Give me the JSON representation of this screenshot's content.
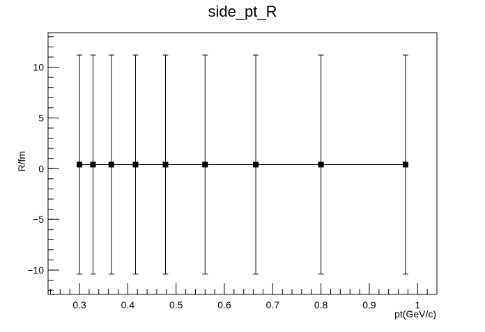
{
  "chart_data": {
    "type": "scatter",
    "title": "side_pt_R",
    "xlabel": "pt(GeV/c)",
    "ylabel": "R/fm",
    "xlim": [
      0.235,
      1.04
    ],
    "ylim": [
      -12.4,
      13.4
    ],
    "x_ticks": [
      0.3,
      0.4,
      0.5,
      0.6,
      0.7,
      0.8,
      0.9,
      1
    ],
    "x_tick_labels": [
      "0.3",
      "0.4",
      "0.5",
      "0.6",
      "0.7",
      "0.8",
      "0.9",
      "1"
    ],
    "y_ticks": [
      -10,
      -5,
      0,
      5,
      10
    ],
    "y_tick_labels": [
      "−10",
      "−5",
      "0",
      "5",
      "10"
    ],
    "grid": false,
    "legend": "none",
    "marker": "square",
    "connect_points": true,
    "series": [
      {
        "x": [
          0.3,
          0.328,
          0.366,
          0.416,
          0.478,
          0.56,
          0.665,
          0.8,
          0.975
        ],
        "y": [
          0.4,
          0.4,
          0.4,
          0.4,
          0.4,
          0.4,
          0.4,
          0.4,
          0.4
        ],
        "y_err_low": [
          10.8,
          10.8,
          10.8,
          10.8,
          10.8,
          10.8,
          10.8,
          10.8,
          10.8
        ],
        "y_err_high": [
          10.8,
          10.8,
          10.8,
          10.8,
          10.8,
          10.8,
          10.8,
          10.8,
          10.8
        ]
      }
    ],
    "colors": {
      "line": "#000000",
      "marker": "#000000",
      "frame": "#000000"
    }
  }
}
